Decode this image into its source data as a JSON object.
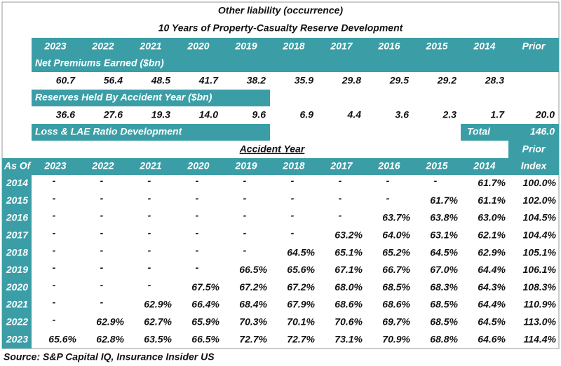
{
  "title": "Other liability (occurrence)",
  "subtitle": "10 Years of Property-Casualty Reserve Development",
  "year_headers": [
    "2023",
    "2022",
    "2021",
    "2020",
    "2019",
    "2018",
    "2017",
    "2016",
    "2015",
    "2014",
    "Prior"
  ],
  "premiums": {
    "label": "Net Premiums Earned ($bn)",
    "values": [
      "60.7",
      "56.4",
      "48.5",
      "41.7",
      "38.2",
      "35.9",
      "29.8",
      "29.5",
      "29.2",
      "28.3"
    ]
  },
  "reserves": {
    "label": "Reserves Held By Accident Year ($bn)",
    "values": [
      "36.6",
      "27.6",
      "19.3",
      "14.0",
      "9.6",
      "6.9",
      "4.4",
      "3.6",
      "2.3",
      "1.7",
      "20.0"
    ]
  },
  "loss": {
    "label": "Loss & LAE Ratio Development",
    "total_label": "Total",
    "total": "146.0"
  },
  "accident_year": "Accident Year",
  "prior_label": "Prior",
  "triangle": {
    "corner": "As Of",
    "headers": [
      "2023",
      "2022",
      "2021",
      "2020",
      "2019",
      "2018",
      "2017",
      "2016",
      "2015",
      "2014",
      "Index"
    ],
    "rows": [
      {
        "year": "2014",
        "cells": [
          "-",
          "-",
          "-",
          "-",
          "-",
          "-",
          "-",
          "-",
          "-",
          "61.7%",
          "100.0%"
        ]
      },
      {
        "year": "2015",
        "cells": [
          "-",
          "-",
          "-",
          "-",
          "-",
          "-",
          "-",
          "-",
          "61.7%",
          "61.1%",
          "102.0%"
        ]
      },
      {
        "year": "2016",
        "cells": [
          "-",
          "-",
          "-",
          "-",
          "-",
          "-",
          "-",
          "63.7%",
          "63.8%",
          "63.0%",
          "104.5%"
        ]
      },
      {
        "year": "2017",
        "cells": [
          "-",
          "-",
          "-",
          "-",
          "-",
          "-",
          "63.2%",
          "64.0%",
          "63.1%",
          "62.1%",
          "104.4%"
        ]
      },
      {
        "year": "2018",
        "cells": [
          "-",
          "-",
          "-",
          "-",
          "-",
          "64.5%",
          "65.1%",
          "65.2%",
          "64.5%",
          "62.9%",
          "105.1%"
        ]
      },
      {
        "year": "2019",
        "cells": [
          "-",
          "-",
          "-",
          "-",
          "66.5%",
          "65.6%",
          "67.1%",
          "66.7%",
          "67.0%",
          "64.4%",
          "106.1%"
        ]
      },
      {
        "year": "2020",
        "cells": [
          "-",
          "-",
          "-",
          "67.5%",
          "67.2%",
          "67.2%",
          "68.0%",
          "68.5%",
          "68.3%",
          "64.3%",
          "108.3%"
        ]
      },
      {
        "year": "2021",
        "cells": [
          "-",
          "-",
          "62.9%",
          "66.4%",
          "68.4%",
          "67.9%",
          "68.6%",
          "68.6%",
          "68.5%",
          "64.4%",
          "110.9%"
        ]
      },
      {
        "year": "2022",
        "cells": [
          "-",
          "62.9%",
          "62.7%",
          "65.9%",
          "70.3%",
          "70.1%",
          "70.6%",
          "69.7%",
          "68.5%",
          "64.5%",
          "113.0%"
        ]
      },
      {
        "year": "2023",
        "cells": [
          "65.6%",
          "62.8%",
          "63.5%",
          "66.5%",
          "72.7%",
          "72.7%",
          "73.1%",
          "70.9%",
          "68.8%",
          "64.6%",
          "114.4%"
        ]
      }
    ]
  },
  "source": "Source: S&P Capital IQ, Insurance Insider US"
}
